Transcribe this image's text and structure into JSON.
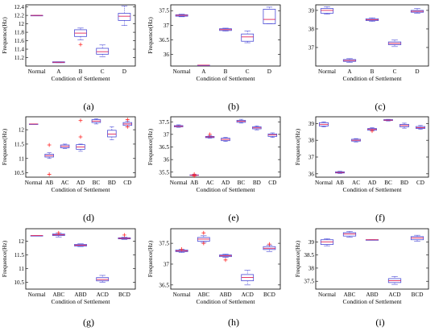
{
  "figure": {
    "colors": {
      "box": "#4a4ad6",
      "median": "#e0265a",
      "outlier": "#ff2a2a",
      "axis": "#000000"
    }
  },
  "chart_data": [
    {
      "id": "a",
      "type": "box",
      "panel_label": "(a)",
      "xlabel": "Condition of Settlement",
      "ylabel": "Frequence(Hz)",
      "ylim": [
        11.0,
        12.45
      ],
      "yticks": [
        11.2,
        11.4,
        11.6,
        11.8,
        12,
        12.2,
        12.4
      ],
      "ytick_labels": [
        "11.2",
        "11.4",
        "11.6",
        "11.8",
        "12",
        "12.2",
        "12.4"
      ],
      "categories": [
        "Normal",
        "A",
        "B",
        "C",
        "D"
      ],
      "boxes": [
        {
          "q1": 12.2,
          "median": 12.2,
          "q3": 12.2,
          "wlo": 12.2,
          "whi": 12.2,
          "outliers": []
        },
        {
          "q1": 11.08,
          "median": 11.09,
          "q3": 11.1,
          "wlo": 11.08,
          "whi": 11.1,
          "outliers": []
        },
        {
          "q1": 11.7,
          "median": 11.78,
          "q3": 11.86,
          "wlo": 11.62,
          "whi": 11.9,
          "outliers": [
            11.51
          ]
        },
        {
          "q1": 11.28,
          "median": 11.34,
          "q3": 11.42,
          "wlo": 11.22,
          "whi": 11.5,
          "outliers": []
        },
        {
          "q1": 12.08,
          "median": 12.18,
          "q3": 12.25,
          "wlo": 11.96,
          "whi": 12.42,
          "outliers": []
        }
      ]
    },
    {
      "id": "b",
      "type": "box",
      "panel_label": "(b)",
      "xlabel": "Condition of Settlement",
      "ylabel": "Frequence(Hz)",
      "ylim": [
        35.6,
        37.7
      ],
      "yticks": [
        36,
        36.5,
        37,
        37.5
      ],
      "ytick_labels": [
        "36",
        "36.5",
        "37",
        "37.5"
      ],
      "categories": [
        "Normal",
        "A",
        "B",
        "C",
        "D"
      ],
      "boxes": [
        {
          "q1": 37.31,
          "median": 37.34,
          "q3": 37.36,
          "wlo": 37.29,
          "whi": 37.38,
          "outliers": []
        },
        {
          "q1": 35.63,
          "median": 35.63,
          "q3": 35.63,
          "wlo": 35.63,
          "whi": 35.63,
          "outliers": []
        },
        {
          "q1": 36.82,
          "median": 36.85,
          "q3": 36.88,
          "wlo": 36.8,
          "whi": 36.9,
          "outliers": []
        },
        {
          "q1": 36.45,
          "median": 36.6,
          "q3": 36.7,
          "wlo": 36.4,
          "whi": 36.8,
          "outliers": []
        },
        {
          "q1": 37.05,
          "median": 37.2,
          "q3": 37.55,
          "wlo": 37.05,
          "whi": 37.62,
          "outliers": []
        }
      ]
    },
    {
      "id": "c",
      "type": "box",
      "panel_label": "(c)",
      "xlabel": "Condition of Settlement",
      "ylabel": "",
      "ylim": [
        36.0,
        39.3
      ],
      "yticks": [
        37,
        38,
        39
      ],
      "ytick_labels": [
        "37",
        "38",
        "39"
      ],
      "categories": [
        "Normal",
        "A",
        "B",
        "C",
        "D"
      ],
      "boxes": [
        {
          "q1": 38.85,
          "median": 39.0,
          "q3": 39.1,
          "wlo": 38.8,
          "whi": 39.2,
          "outliers": []
        },
        {
          "q1": 36.25,
          "median": 36.3,
          "q3": 36.35,
          "wlo": 36.2,
          "whi": 36.4,
          "outliers": []
        },
        {
          "q1": 38.45,
          "median": 38.5,
          "q3": 38.55,
          "wlo": 38.4,
          "whi": 38.6,
          "outliers": []
        },
        {
          "q1": 37.15,
          "median": 37.22,
          "q3": 37.3,
          "wlo": 37.05,
          "whi": 37.4,
          "outliers": []
        },
        {
          "q1": 38.9,
          "median": 38.95,
          "q3": 39.0,
          "wlo": 38.85,
          "whi": 39.1,
          "outliers": []
        }
      ]
    },
    {
      "id": "d",
      "type": "box",
      "panel_label": "(d)",
      "xlabel": "Condition of Settlement",
      "ylabel": "Frequence(Hz)",
      "ylim": [
        10.35,
        12.45
      ],
      "yticks": [
        10.5,
        11,
        11.5,
        12
      ],
      "ytick_labels": [
        "10.5",
        "11",
        "11.5",
        "12"
      ],
      "categories": [
        "Normal",
        "AB",
        "AC",
        "AD",
        "BC",
        "BD",
        "CD"
      ],
      "boxes": [
        {
          "q1": 12.2,
          "median": 12.2,
          "q3": 12.2,
          "wlo": 12.2,
          "whi": 12.2,
          "outliers": []
        },
        {
          "q1": 11.05,
          "median": 11.1,
          "q3": 11.15,
          "wlo": 11.0,
          "whi": 11.2,
          "outliers": [
            11.47,
            10.45
          ]
        },
        {
          "q1": 11.37,
          "median": 11.42,
          "q3": 11.47,
          "wlo": 11.35,
          "whi": 11.5,
          "outliers": []
        },
        {
          "q1": 11.32,
          "median": 11.4,
          "q3": 11.48,
          "wlo": 11.25,
          "whi": 11.5,
          "outliers": [
            12.32,
            11.75
          ]
        },
        {
          "q1": 12.25,
          "median": 12.3,
          "q3": 12.35,
          "wlo": 12.2,
          "whi": 12.38,
          "outliers": []
        },
        {
          "q1": 11.75,
          "median": 11.85,
          "q3": 11.98,
          "wlo": 11.65,
          "whi": 12.1,
          "outliers": []
        },
        {
          "q1": 12.15,
          "median": 12.2,
          "q3": 12.25,
          "wlo": 12.1,
          "whi": 12.3,
          "outliers": [
            12.35,
            12.1
          ]
        }
      ]
    },
    {
      "id": "e",
      "type": "box",
      "panel_label": "(e)",
      "xlabel": "Condition of Settlement",
      "ylabel": "Frequence(Hz)",
      "ylim": [
        35.3,
        37.7
      ],
      "yticks": [
        35.5,
        36,
        36.5,
        37,
        37.5
      ],
      "ytick_labels": [
        "35.5",
        "36",
        "36.5",
        "37",
        "37.5"
      ],
      "categories": [
        "Normal",
        "AB",
        "AC",
        "AD",
        "BC",
        "BD",
        "CD"
      ],
      "boxes": [
        {
          "q1": 37.3,
          "median": 37.32,
          "q3": 37.35,
          "wlo": 37.28,
          "whi": 37.38,
          "outliers": []
        },
        {
          "q1": 35.37,
          "median": 35.38,
          "q3": 35.39,
          "wlo": 35.36,
          "whi": 35.4,
          "outliers": [
            35.42,
            35.35
          ]
        },
        {
          "q1": 36.87,
          "median": 36.9,
          "q3": 36.92,
          "wlo": 36.85,
          "whi": 36.95,
          "outliers": [
            37.0
          ]
        },
        {
          "q1": 36.75,
          "median": 36.8,
          "q3": 36.85,
          "wlo": 36.72,
          "whi": 36.88,
          "outliers": []
        },
        {
          "q1": 37.48,
          "median": 37.52,
          "q3": 37.56,
          "wlo": 37.45,
          "whi": 37.6,
          "outliers": []
        },
        {
          "q1": 37.22,
          "median": 37.26,
          "q3": 37.3,
          "wlo": 37.18,
          "whi": 37.34,
          "outliers": []
        },
        {
          "q1": 36.92,
          "median": 36.98,
          "q3": 37.02,
          "wlo": 36.88,
          "whi": 37.06,
          "outliers": []
        }
      ]
    },
    {
      "id": "f",
      "type": "box",
      "panel_label": "(f)",
      "xlabel": "Condition of Settlement",
      "ylabel": "Frequence(Hz)",
      "ylim": [
        35.8,
        39.4
      ],
      "yticks": [
        36,
        37,
        38,
        39
      ],
      "ytick_labels": [
        "36",
        "37",
        "38",
        "39"
      ],
      "categories": [
        "Normal",
        "AB",
        "AC",
        "AD",
        "BC",
        "BD",
        "CD"
      ],
      "boxes": [
        {
          "q1": 38.85,
          "median": 38.95,
          "q3": 39.05,
          "wlo": 38.8,
          "whi": 39.1,
          "outliers": []
        },
        {
          "q1": 36.05,
          "median": 36.08,
          "q3": 36.12,
          "wlo": 36.02,
          "whi": 36.15,
          "outliers": []
        },
        {
          "q1": 37.95,
          "median": 38.0,
          "q3": 38.06,
          "wlo": 37.9,
          "whi": 38.1,
          "outliers": []
        },
        {
          "q1": 38.6,
          "median": 38.65,
          "q3": 38.7,
          "wlo": 38.55,
          "whi": 38.75,
          "outliers": [
            38.55
          ]
        },
        {
          "q1": 39.18,
          "median": 39.2,
          "q3": 39.23,
          "wlo": 39.15,
          "whi": 39.25,
          "outliers": []
        },
        {
          "q1": 38.8,
          "median": 38.88,
          "q3": 38.95,
          "wlo": 38.72,
          "whi": 39.02,
          "outliers": []
        },
        {
          "q1": 38.7,
          "median": 38.75,
          "q3": 38.82,
          "wlo": 38.65,
          "whi": 38.88,
          "outliers": []
        }
      ]
    },
    {
      "id": "g",
      "type": "box",
      "panel_label": "(g)",
      "xlabel": "Condition of Settlement",
      "ylabel": "Frequence(Hz)",
      "ylim": [
        10.25,
        12.45
      ],
      "yticks": [
        10.5,
        11,
        11.5,
        12
      ],
      "ytick_labels": [
        "10.5",
        "11",
        "11.5",
        "12"
      ],
      "categories": [
        "Normal",
        "ABC",
        "ABD",
        "ACD",
        "BCD"
      ],
      "boxes": [
        {
          "q1": 12.2,
          "median": 12.2,
          "q3": 12.2,
          "wlo": 12.2,
          "whi": 12.2,
          "outliers": []
        },
        {
          "q1": 12.2,
          "median": 12.23,
          "q3": 12.26,
          "wlo": 12.15,
          "whi": 12.3,
          "outliers": [
            12.3
          ]
        },
        {
          "q1": 11.82,
          "median": 11.85,
          "q3": 11.88,
          "wlo": 11.8,
          "whi": 11.9,
          "outliers": []
        },
        {
          "q1": 10.55,
          "median": 10.6,
          "q3": 10.67,
          "wlo": 10.5,
          "whi": 10.75,
          "outliers": []
        },
        {
          "q1": 12.08,
          "median": 12.1,
          "q3": 12.12,
          "wlo": 12.06,
          "whi": 12.14,
          "outliers": [
            12.22
          ]
        }
      ]
    },
    {
      "id": "h",
      "type": "box",
      "panel_label": "(h)",
      "xlabel": "Condition of Settlement",
      "ylabel": "Frequence(Hz)",
      "ylim": [
        36.4,
        37.85
      ],
      "yticks": [
        36.5,
        37,
        37.5
      ],
      "ytick_labels": [
        "36.5",
        "37",
        "37.5"
      ],
      "categories": [
        "Normal",
        "ABC",
        "ABD",
        "ACD",
        "BCD"
      ],
      "boxes": [
        {
          "q1": 37.3,
          "median": 37.32,
          "q3": 37.34,
          "wlo": 37.28,
          "whi": 37.36,
          "outliers": [
            37.36
          ]
        },
        {
          "q1": 37.55,
          "median": 37.6,
          "q3": 37.64,
          "wlo": 37.52,
          "whi": 37.68,
          "outliers": [
            37.75,
            37.5
          ]
        },
        {
          "q1": 37.18,
          "median": 37.2,
          "q3": 37.22,
          "wlo": 37.16,
          "whi": 37.24,
          "outliers": [
            37.1
          ]
        },
        {
          "q1": 36.6,
          "median": 36.68,
          "q3": 36.75,
          "wlo": 36.5,
          "whi": 36.85,
          "outliers": []
        },
        {
          "q1": 37.35,
          "median": 37.38,
          "q3": 37.42,
          "wlo": 37.3,
          "whi": 37.45,
          "outliers": [
            37.48
          ]
        }
      ]
    },
    {
      "id": "i",
      "type": "box",
      "panel_label": "(i)",
      "xlabel": "Condition of Settlement",
      "ylabel": "Frequence(Hz)",
      "ylim": [
        37.2,
        39.5
      ],
      "yticks": [
        37.5,
        38,
        38.5,
        39
      ],
      "ytick_labels": [
        "37.5",
        "38",
        "38.5",
        "39"
      ],
      "categories": [
        "Normal",
        "ABC",
        "ABD",
        "ACD",
        "BCD"
      ],
      "boxes": [
        {
          "q1": 38.9,
          "median": 39.0,
          "q3": 39.08,
          "wlo": 38.85,
          "whi": 39.12,
          "outliers": []
        },
        {
          "q1": 39.22,
          "median": 39.3,
          "q3": 39.35,
          "wlo": 39.18,
          "whi": 39.4,
          "outliers": []
        },
        {
          "q1": 39.08,
          "median": 39.08,
          "q3": 39.08,
          "wlo": 39.08,
          "whi": 39.08,
          "outliers": []
        },
        {
          "q1": 37.45,
          "median": 37.52,
          "q3": 37.6,
          "wlo": 37.38,
          "whi": 37.68,
          "outliers": []
        },
        {
          "q1": 39.08,
          "median": 39.15,
          "q3": 39.2,
          "wlo": 39.02,
          "whi": 39.25,
          "outliers": []
        }
      ]
    }
  ]
}
